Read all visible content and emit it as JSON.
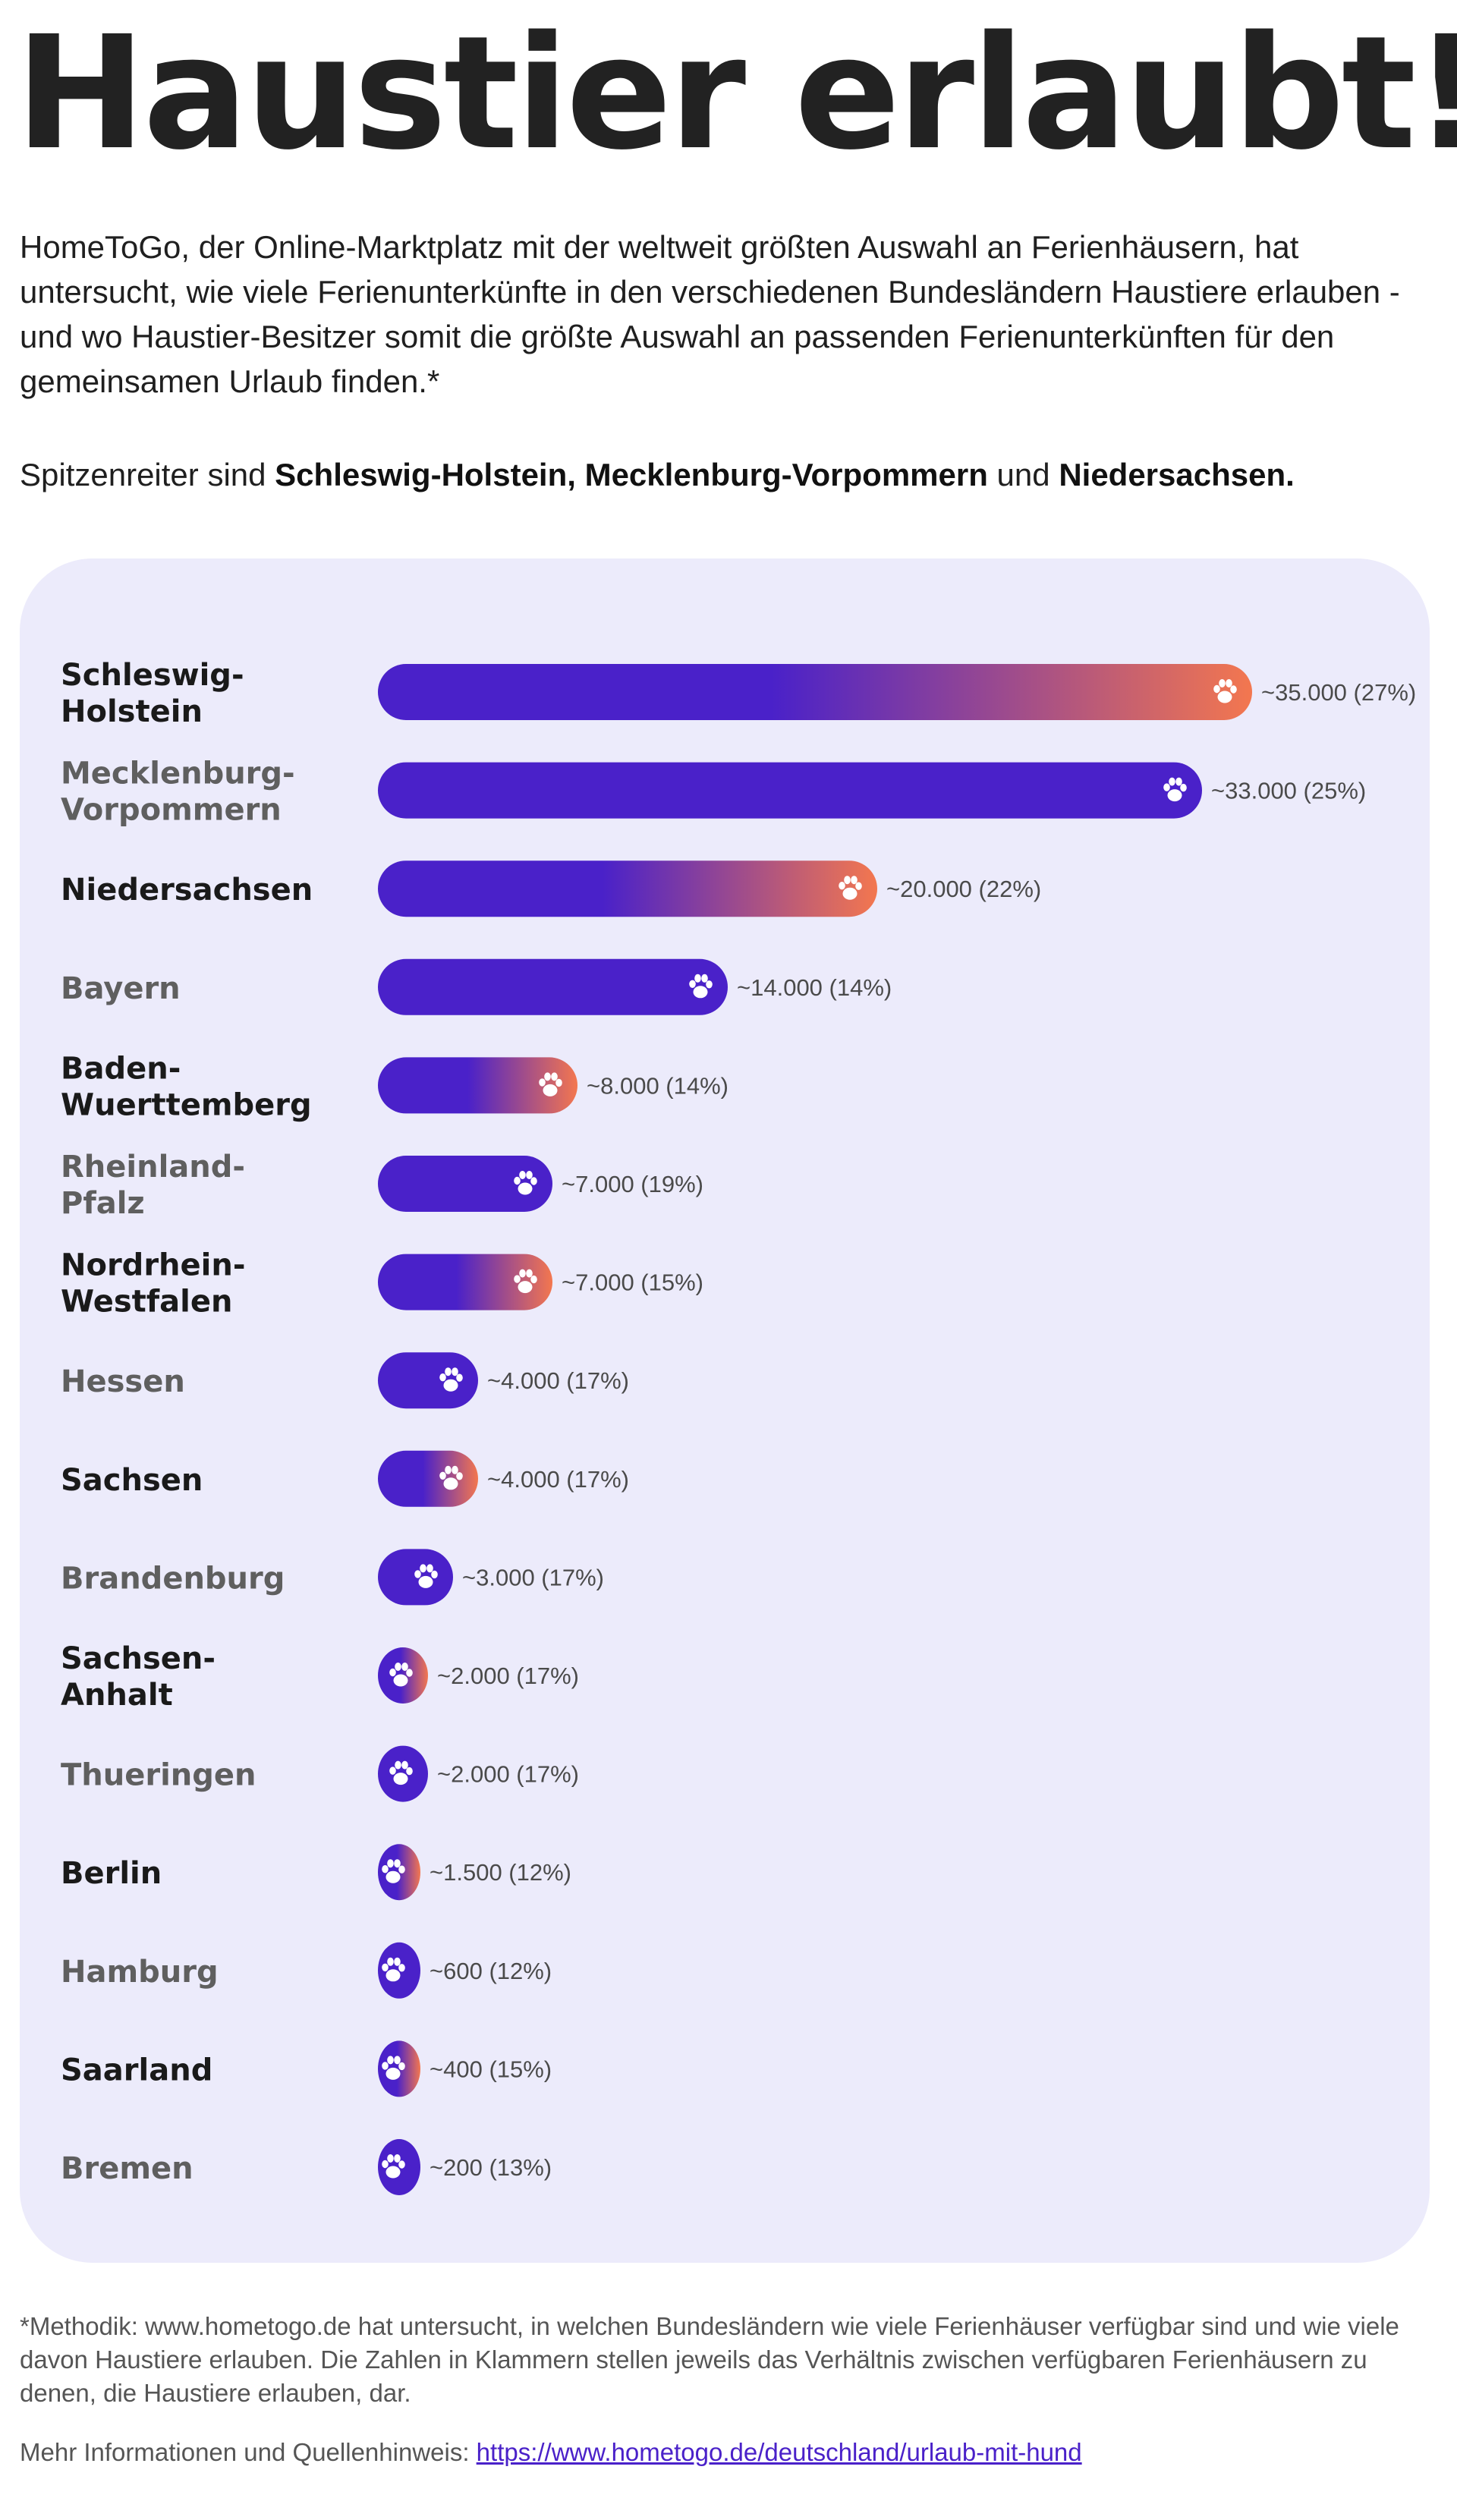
{
  "header": {
    "title": "Haustier erlaubt!",
    "intro": "HomeToGo, der Online-Marktplatz mit der weltweit größten Auswahl an Ferienhäusern, hat untersucht, wie viele Ferienunterkünfte in den verschiedenen Bundesländern Haustiere erlauben - und wo Haustier-Besitzer somit die größte Auswahl an passenden Ferienunterkünften für den gemeinsamen Urlaub finden.*",
    "lead_prefix": "Spitzenreiter sind ",
    "lead_bold_1": "Schleswig-Holstein, Mecklenburg-Vorpommern",
    "lead_middle": " und ",
    "lead_bold_2": "Niedersachsen."
  },
  "chart_data": {
    "type": "bar",
    "orientation": "horizontal",
    "categories": [
      [
        "Schleswig-",
        "Holstein"
      ],
      [
        "Mecklenburg-",
        "Vorpommern"
      ],
      [
        "Niedersachsen"
      ],
      [
        "Bayern"
      ],
      [
        "Baden-",
        "Wuerttemberg"
      ],
      [
        "Rheinland-",
        "Pfalz"
      ],
      [
        "Nordrhein-",
        "Westfalen"
      ],
      [
        "Hessen"
      ],
      [
        "Sachsen"
      ],
      [
        "Brandenburg"
      ],
      [
        "Sachsen-",
        "Anhalt"
      ],
      [
        "Thueringen"
      ],
      [
        "Berlin"
      ],
      [
        "Hamburg"
      ],
      [
        "Saarland"
      ],
      [
        "Bremen"
      ]
    ],
    "values": [
      35000,
      33000,
      20000,
      14000,
      8000,
      7000,
      7000,
      4000,
      4000,
      3000,
      2000,
      2000,
      1500,
      600,
      400,
      200
    ],
    "value_labels": [
      "~35.000 (27%)",
      "~33.000 (25%)",
      "~20.000 (22%)",
      "~14.000 (14%)",
      "~8.000 (14%)",
      "~7.000 (19%)",
      "~7.000 (15%)",
      "~4.000 (17%)",
      "~4.000 (17%)",
      "~3.000 (17%)",
      "~2.000 (17%)",
      "~2.000 (17%)",
      "~1.500 (12%)",
      "~600 (12%)",
      "~400 (15%)",
      "~200 (13%)"
    ],
    "ratios_percent": [
      27,
      25,
      22,
      14,
      14,
      19,
      15,
      17,
      17,
      17,
      17,
      17,
      12,
      12,
      15,
      13
    ],
    "highlight": [
      true,
      false,
      true,
      false,
      true,
      false,
      true,
      false,
      true,
      false,
      true,
      false,
      true,
      false,
      true,
      false
    ],
    "bar_icon": "paw-icon",
    "colors": {
      "panel_background": "#ecebfb",
      "bar_primary": "#4a21c9",
      "bar_gradient_end": "#f3774f",
      "label_dark": "#1a1a1a",
      "label_grey": "#5f5f5f",
      "value_text": "#4a4a4a"
    },
    "title": "",
    "xlabel": "",
    "ylabel": "",
    "legend": "none",
    "grid": false
  },
  "footer": {
    "methodology": "*Methodik: www.hometogo.de hat untersucht, in welchen Bundesländern wie viele Ferienhäuser verfügbar sind und wie viele davon Haustiere erlauben. Die Zahlen in Klammern stellen jeweils das Verhältnis zwischen verfügbaren Ferienhäusern zu denen, die Haustiere erlauben, dar.",
    "more_info": "Mehr Informationen und Quellenhinweis: ",
    "link": "https://www.hometogo.de/deutschland/urlaub-mit-hund"
  }
}
